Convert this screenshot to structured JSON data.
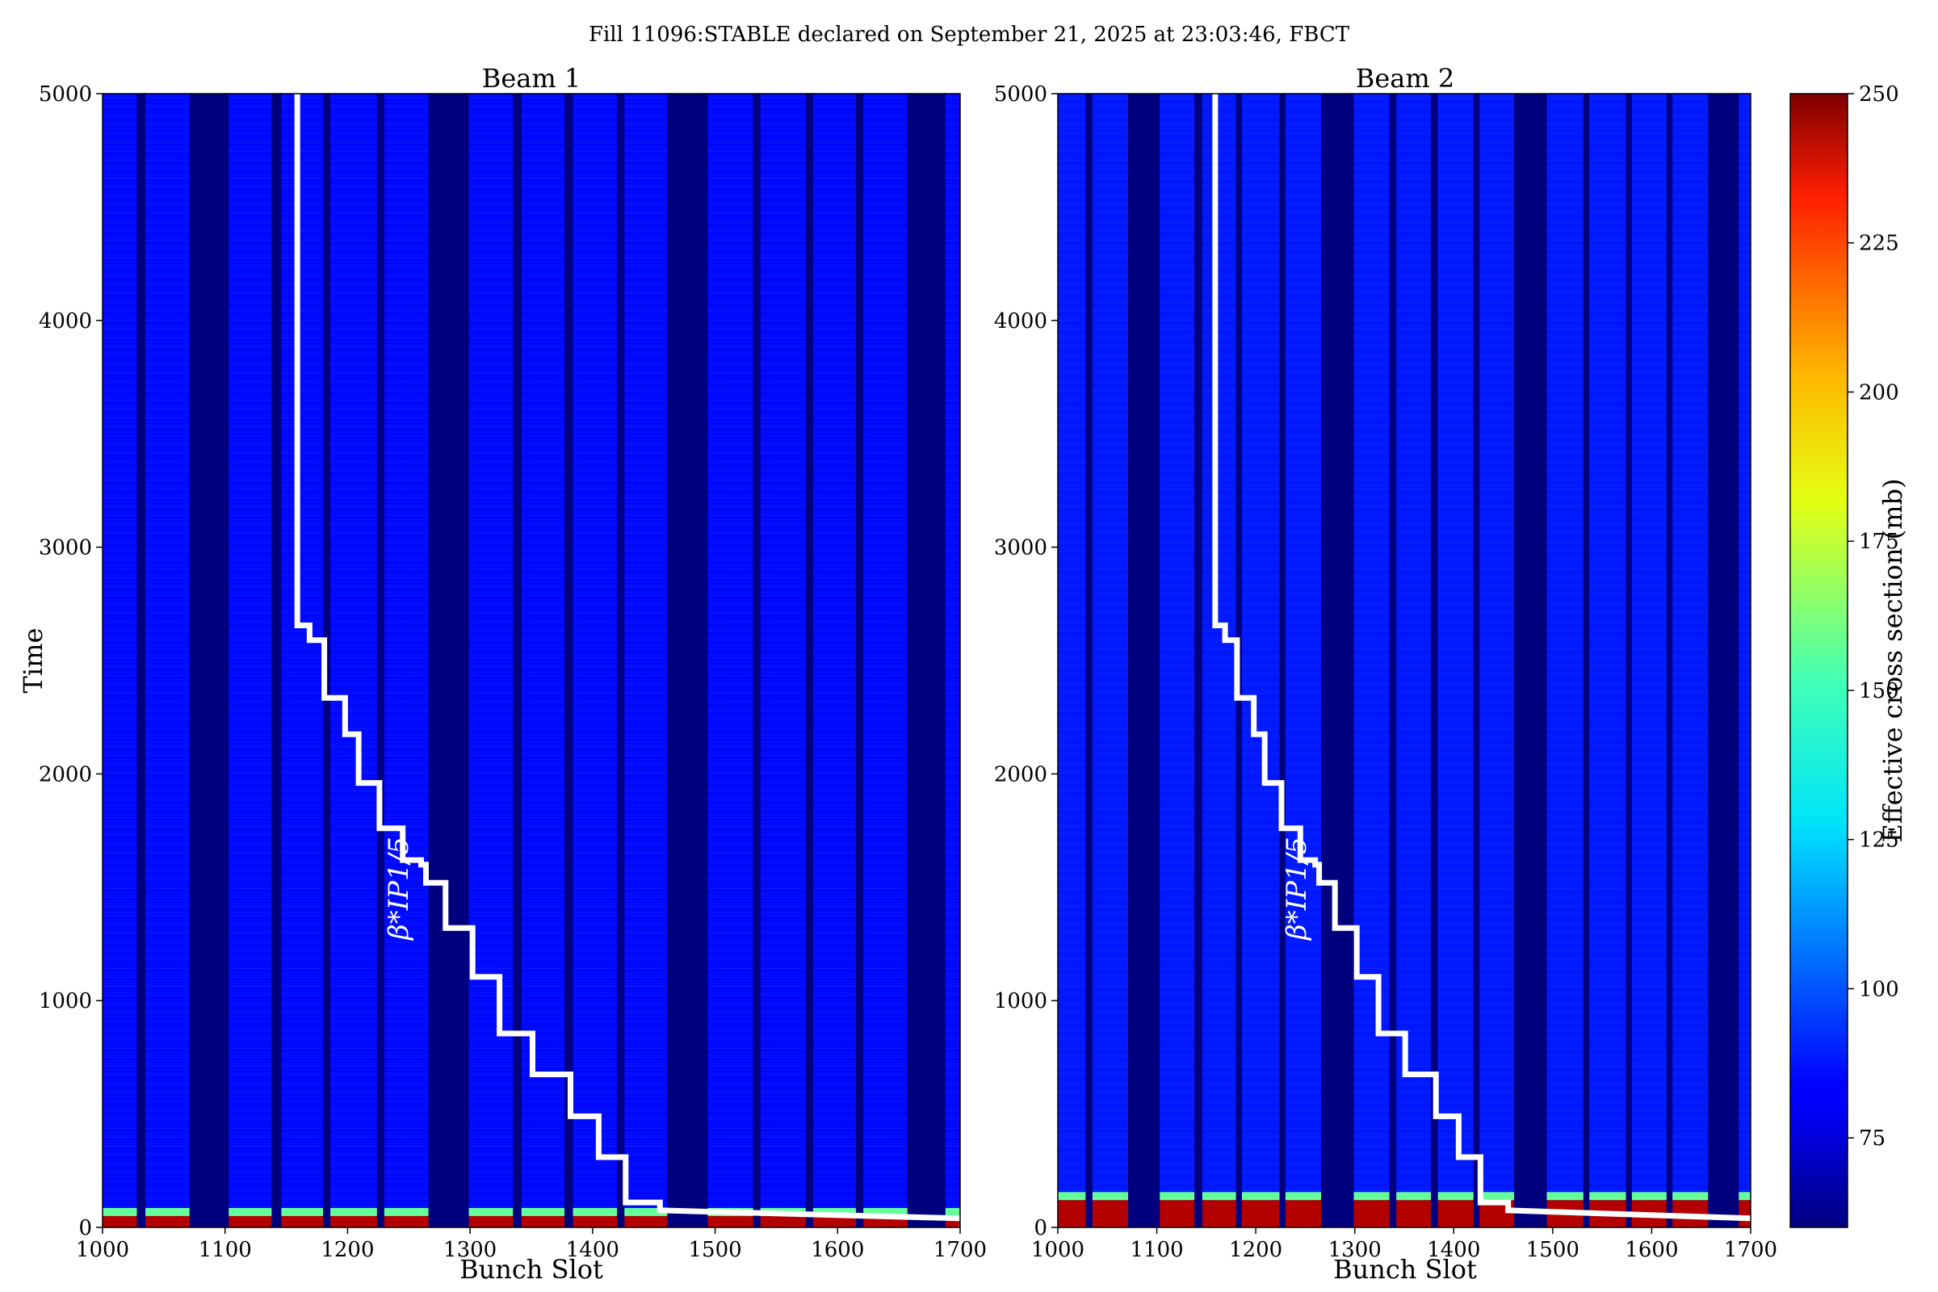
{
  "figure": {
    "suptitle": "Fill 11096:STABLE declared on September 21, 2025 at 23:03:46, FBCT"
  },
  "chart_data": [
    {
      "type": "heatmap",
      "title": "Beam 1",
      "xlabel": "Bunch Slot",
      "ylabel": "Time",
      "xlim": [
        1000,
        1700
      ],
      "ylim": [
        0,
        5000
      ],
      "xticks": [
        "1000",
        "1100",
        "1200",
        "1300",
        "1400",
        "1500",
        "1600",
        "1700"
      ],
      "yticks": [
        "0",
        "1000",
        "2000",
        "3000",
        "4000",
        "5000"
      ],
      "empty_slot_ranges": [
        [
          1028,
          1035
        ],
        [
          1071,
          1103
        ],
        [
          1138,
          1146
        ],
        [
          1180,
          1186
        ],
        [
          1224,
          1230
        ],
        [
          1266,
          1299
        ],
        [
          1335,
          1342
        ],
        [
          1377,
          1384
        ],
        [
          1420,
          1426
        ],
        [
          1461,
          1494
        ],
        [
          1531,
          1537
        ],
        [
          1574,
          1580
        ],
        [
          1615,
          1621
        ],
        [
          1657,
          1688
        ]
      ],
      "burnoff_band": {
        "time_range": [
          0,
          50
        ],
        "value_mb": 240
      },
      "background_value_mb": 85,
      "annotation": "β*IP1/5",
      "beta_star_curve": {
        "x": [
          1159,
          1159,
          1169,
          1169,
          1181,
          1181,
          1198,
          1198,
          1209,
          1209,
          1226,
          1226,
          1245,
          1245,
          1260,
          1260,
          1264,
          1264,
          1280,
          1280,
          1302,
          1302,
          1324,
          1324,
          1351,
          1351,
          1382,
          1382,
          1405,
          1405,
          1427,
          1427,
          1455,
          1455,
          1700
        ],
        "y": [
          5000,
          2655,
          2655,
          2590,
          2590,
          2335,
          2335,
          2175,
          2175,
          1960,
          1960,
          1760,
          1760,
          1620,
          1620,
          1600,
          1600,
          1520,
          1520,
          1320,
          1320,
          1105,
          1105,
          855,
          855,
          675,
          675,
          490,
          490,
          310,
          310,
          110,
          110,
          75,
          40
        ]
      }
    },
    {
      "type": "heatmap",
      "title": "Beam 2",
      "xlabel": "Bunch Slot",
      "ylabel": "",
      "xlim": [
        1000,
        1700
      ],
      "ylim": [
        0,
        5000
      ],
      "xticks": [
        "1000",
        "1100",
        "1200",
        "1300",
        "1400",
        "1500",
        "1600",
        "1700"
      ],
      "yticks": [
        "0",
        "1000",
        "2000",
        "3000",
        "4000",
        "5000"
      ],
      "empty_slot_ranges": [
        [
          1028,
          1035
        ],
        [
          1071,
          1103
        ],
        [
          1138,
          1146
        ],
        [
          1180,
          1186
        ],
        [
          1224,
          1230
        ],
        [
          1266,
          1299
        ],
        [
          1335,
          1342
        ],
        [
          1377,
          1384
        ],
        [
          1420,
          1426
        ],
        [
          1461,
          1494
        ],
        [
          1531,
          1537
        ],
        [
          1574,
          1580
        ],
        [
          1615,
          1621
        ],
        [
          1657,
          1688
        ]
      ],
      "burnoff_band": {
        "time_range": [
          0,
          120
        ],
        "value_mb": 240
      },
      "background_value_mb": 88,
      "annotation": "β*IP1/5",
      "beta_star_curve": {
        "x": [
          1159,
          1159,
          1169,
          1169,
          1181,
          1181,
          1198,
          1198,
          1209,
          1209,
          1226,
          1226,
          1245,
          1245,
          1260,
          1260,
          1264,
          1264,
          1280,
          1280,
          1302,
          1302,
          1324,
          1324,
          1351,
          1351,
          1382,
          1382,
          1405,
          1405,
          1427,
          1427,
          1455,
          1455,
          1700
        ],
        "y": [
          5000,
          2655,
          2655,
          2590,
          2590,
          2335,
          2335,
          2175,
          2175,
          1960,
          1960,
          1760,
          1760,
          1620,
          1620,
          1600,
          1600,
          1520,
          1520,
          1320,
          1320,
          1105,
          1105,
          855,
          855,
          675,
          675,
          490,
          490,
          310,
          310,
          110,
          110,
          75,
          40
        ]
      }
    }
  ],
  "colorbar": {
    "label": "Effective cross section (mb)",
    "range": [
      60,
      250
    ],
    "ticks": [
      "75",
      "100",
      "125",
      "150",
      "175",
      "200",
      "225",
      "250"
    ],
    "colormap": "jet"
  }
}
